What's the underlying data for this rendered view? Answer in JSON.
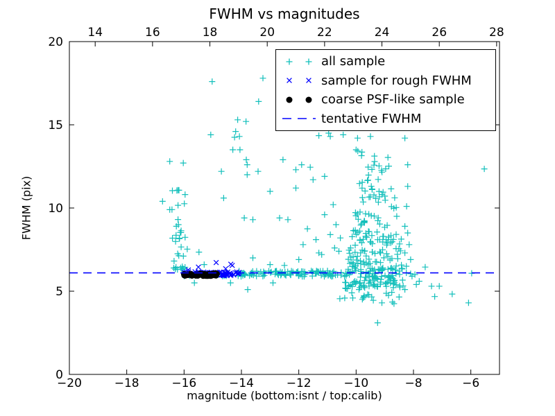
{
  "chart_data": {
    "type": "scatter",
    "title": "FWHM vs magnitudes",
    "xlabel": "magnitude (bottom:isnt / top:calib)",
    "ylabel": "FWHM (pix)",
    "xlim": [
      -20,
      -5
    ],
    "ylim": [
      0,
      20
    ],
    "grid": false,
    "legend_position": "upper right",
    "frame_color": "#000000",
    "x_ticks": {
      "values": [
        -20,
        -18,
        -16,
        -14,
        -12,
        -10,
        -8,
        -6
      ],
      "labels": [
        "−20",
        "−18",
        "−16",
        "−14",
        "−12",
        "−10",
        "−8",
        "−6"
      ]
    },
    "top_axis": {
      "offset": 33.1,
      "ticks": [
        14,
        16,
        18,
        20,
        22,
        24,
        26,
        28
      ],
      "labels": [
        "14",
        "16",
        "18",
        "20",
        "22",
        "24",
        "26",
        "28"
      ]
    },
    "y_ticks": {
      "values": [
        0,
        5,
        10,
        15,
        20
      ],
      "labels": [
        "0",
        "5",
        "10",
        "15",
        "20"
      ]
    },
    "series": [
      {
        "name": "all sample",
        "marker": "plus",
        "color": "#12bfbb",
        "points": [
          [
            -15.02,
            17.6
          ],
          [
            -13.25,
            17.8
          ],
          [
            -13.4,
            16.4
          ],
          [
            -13.84,
            15.2
          ],
          [
            -14.13,
            15.3
          ],
          [
            -14.2,
            14.6
          ],
          [
            -15.07,
            14.4
          ],
          [
            -14.24,
            14.25
          ],
          [
            -14.07,
            14.3
          ],
          [
            -11.3,
            14.35
          ],
          [
            -10.96,
            14.5
          ],
          [
            -12.55,
            12.9
          ],
          [
            -12.1,
            12.3
          ],
          [
            -12.1,
            11.2
          ],
          [
            -13.0,
            11.0
          ],
          [
            -14.3,
            13.5
          ],
          [
            -14.05,
            13.5
          ],
          [
            -13.83,
            12.9
          ],
          [
            -14.7,
            12.2
          ],
          [
            -13.8,
            12.6
          ],
          [
            -13.8,
            12.0
          ],
          [
            -13.42,
            12.2
          ],
          [
            -14.62,
            10.6
          ],
          [
            -13.9,
            9.4
          ],
          [
            -13.6,
            9.3
          ],
          [
            -12.67,
            9.4
          ],
          [
            -12.38,
            9.3
          ],
          [
            -11.9,
            12.6
          ],
          [
            -11.6,
            12.45
          ],
          [
            -11.1,
            11.9
          ],
          [
            -11.5,
            11.7
          ],
          [
            -16.75,
            10.4
          ],
          [
            -16.5,
            9.9
          ],
          [
            -16.5,
            12.8
          ],
          [
            -15.48,
            7.35
          ],
          [
            -15.3,
            6.6
          ],
          [
            -11.7,
            8.75
          ],
          [
            -11.4,
            8.1
          ],
          [
            -11.85,
            7.8
          ],
          [
            -11.1,
            9.6
          ],
          [
            -10.9,
            8.4
          ],
          [
            -10.7,
            9.0
          ],
          [
            -10.75,
            7.6
          ],
          [
            -11.2,
            7.2
          ],
          [
            -10.55,
            8.2
          ],
          [
            -10.8,
            10.2
          ],
          [
            -10.9,
            14.3
          ],
          [
            -10.45,
            14.4
          ],
          [
            -9.95,
            14.2
          ],
          [
            -9.5,
            14.3
          ],
          [
            -8.3,
            14.2
          ],
          [
            -10.0,
            13.5
          ],
          [
            -8.2,
            12.6
          ],
          [
            -8.2,
            11.3
          ],
          [
            -8.24,
            10.1
          ],
          [
            -8.3,
            8.9
          ],
          [
            -8.2,
            8.5
          ],
          [
            -8.15,
            7.8
          ],
          [
            -8.3,
            7.3
          ],
          [
            -8.1,
            6.9
          ],
          [
            -8.25,
            6.5
          ],
          [
            -10.15,
            4.9
          ],
          [
            -9.9,
            5.1
          ],
          [
            -9.6,
            4.8
          ],
          [
            -9.4,
            4.45
          ],
          [
            -9.1,
            4.3
          ],
          [
            -8.87,
            4.75
          ],
          [
            -8.68,
            4.25
          ],
          [
            -8.5,
            4.65
          ],
          [
            -8.3,
            5.1
          ],
          [
            -7.9,
            5.4
          ],
          [
            -10.3,
            5.15
          ],
          [
            -9.75,
            4.6
          ],
          [
            -15.64,
            5.5
          ],
          [
            -14.38,
            5.5
          ],
          [
            -13.78,
            5.1
          ],
          [
            -12.9,
            5.5
          ],
          [
            -13.6,
            7.0
          ],
          [
            -13.0,
            6.6
          ],
          [
            -12.5,
            6.55
          ],
          [
            -12.0,
            6.9
          ],
          [
            -11.3,
            7.3
          ],
          [
            -10.6,
            7.4
          ],
          [
            -8.25,
            6.1
          ],
          [
            -8.1,
            6.05
          ],
          [
            -7.95,
            6.0
          ],
          [
            -8.05,
            5.9
          ],
          [
            -7.8,
            5.6
          ],
          [
            -7.59,
            6.45
          ],
          [
            -7.37,
            5.3
          ],
          [
            -7.26,
            4.68
          ],
          [
            -7.1,
            5.3
          ],
          [
            -6.65,
            4.83
          ],
          [
            -6.08,
            4.3
          ],
          [
            -5.97,
            6.08
          ],
          [
            -5.53,
            12.35
          ],
          [
            -9.25,
            3.1
          ]
        ],
        "dense_regions": [
          {
            "seed": 11,
            "x_range": [
              -16.45,
              -15.88
            ],
            "y_range": [
              6.3,
              13.0
            ],
            "y_bias_pow": 2,
            "count": 36
          },
          {
            "seed": 22,
            "x_range": [
              -16.0,
              -14.2
            ],
            "y_center": 6.0,
            "y_jitter": 0.1,
            "count": 16
          },
          {
            "seed": 33,
            "x_range": [
              -14.2,
              -10.35
            ],
            "y_center": 6.05,
            "y_jitter": 0.17,
            "count": 108
          },
          {
            "seed": 44,
            "x_range": [
              -10.45,
              -8.35
            ],
            "y_range": [
              5.2,
              6.6
            ],
            "count": 115
          },
          {
            "seed": 55,
            "x_range": [
              -10.3,
              -8.4
            ],
            "y_range": [
              6.6,
              8.6
            ],
            "count": 78
          },
          {
            "seed": 66,
            "x_range": [
              -10.1,
              -8.55
            ],
            "y_range": [
              8.6,
              11.0
            ],
            "count": 42
          },
          {
            "seed": 77,
            "x_range": [
              -9.95,
              -8.75
            ],
            "y_range": [
              11.0,
              13.6
            ],
            "count": 26
          },
          {
            "seed": 88,
            "x_range": [
              -10.6,
              -8.4
            ],
            "y_range": [
              4.35,
              5.2
            ],
            "count": 13
          }
        ]
      },
      {
        "name": "sample for rough FWHM",
        "marker": "cross",
        "color": "#0000ff",
        "points": [
          [
            -15.85,
            6.28
          ],
          [
            -15.5,
            6.45
          ],
          [
            -14.88,
            6.72
          ],
          [
            -14.37,
            6.62
          ],
          [
            -14.32,
            6.55
          ],
          [
            -14.55,
            6.35
          ]
        ],
        "dense_regions": [
          {
            "seed": 99,
            "x_range": [
              -16.0,
              -14.08
            ],
            "y_center": 6.05,
            "y_jitter": 0.12,
            "count": 72
          }
        ]
      },
      {
        "name": "coarse PSF-like sample",
        "marker": "dot",
        "color": "#000000",
        "points": [],
        "dense_regions": [
          {
            "seed": 111,
            "x_range": [
              -16.02,
              -14.86
            ],
            "y_center": 6.0,
            "y_jitter": 0.08,
            "count": 52
          }
        ]
      },
      {
        "name": "tentative FWHM",
        "marker": "dashed-line",
        "color": "#0000ff",
        "hline_y": 6.1
      }
    ]
  }
}
